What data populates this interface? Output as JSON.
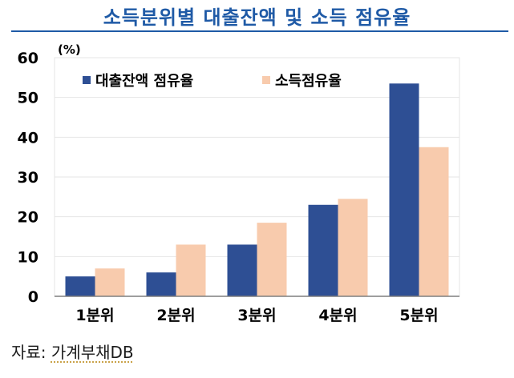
{
  "title": "소득분위별 대출잔액 및 소득 점유율",
  "colors": {
    "title": "#1f5aa6",
    "rule": "#1f5aa6",
    "loan": "#2e4f94",
    "income": "#f8cbad",
    "grid": "#e6e6e6",
    "axis": "#7f7f7f",
    "text": "#000000"
  },
  "source": {
    "label": "자료:",
    "text": "가계부채DB"
  },
  "chart_data": {
    "type": "bar",
    "unit_label": "(%)",
    "categories": [
      "1분위",
      "2분위",
      "3분위",
      "4분위",
      "5분위"
    ],
    "series": [
      {
        "name": "대출잔액 점유율",
        "values": [
          5,
          6,
          13,
          23,
          53.5
        ]
      },
      {
        "name": "소득점유율",
        "values": [
          7,
          13,
          18.5,
          24.5,
          37.5
        ]
      }
    ],
    "ylim": [
      0,
      60
    ],
    "yticks": [
      0,
      10,
      20,
      30,
      40,
      50,
      60
    ],
    "grid": true,
    "legend": "top-left"
  }
}
